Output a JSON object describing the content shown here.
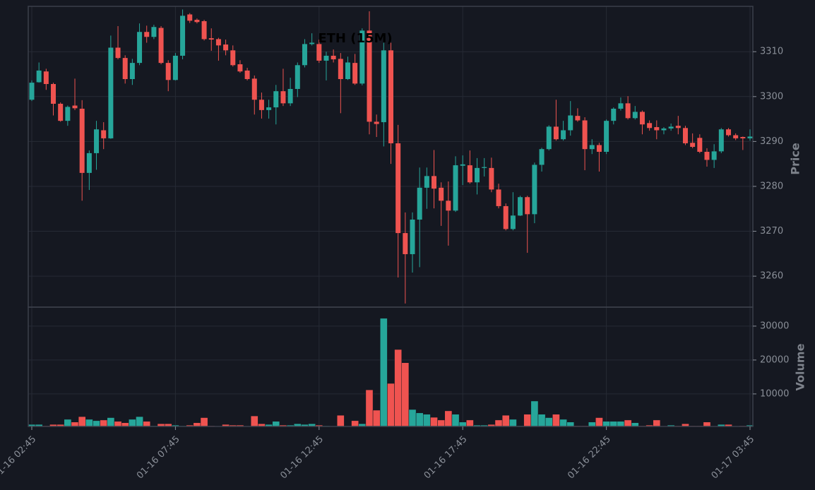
{
  "chart_data": {
    "type": "candlestick",
    "title": "ETH (15M)",
    "y_label": "Price",
    "volume_label": "Volume",
    "up_color": "#26a69a",
    "down_color": "#ef5350",
    "grid": true,
    "categories": [
      "01-16 02:45",
      null,
      null,
      null,
      null,
      null,
      null,
      null,
      null,
      null,
      null,
      null,
      null,
      null,
      null,
      null,
      null,
      null,
      null,
      null,
      "01-16 07:45",
      null,
      null,
      null,
      null,
      null,
      null,
      null,
      null,
      null,
      null,
      null,
      null,
      null,
      null,
      null,
      null,
      null,
      null,
      null,
      "01-16 12:45",
      null,
      null,
      null,
      null,
      null,
      null,
      null,
      null,
      null,
      null,
      null,
      null,
      null,
      null,
      null,
      null,
      null,
      null,
      null,
      "01-16 17:45",
      null,
      null,
      null,
      null,
      null,
      null,
      null,
      null,
      null,
      null,
      null,
      null,
      null,
      null,
      null,
      null,
      null,
      null,
      null,
      "01-16 22:45",
      null,
      null,
      null,
      null,
      null,
      null,
      null,
      null,
      null,
      null,
      null,
      null,
      null,
      null,
      null,
      null,
      null,
      null,
      null,
      "01-17 03:45"
    ],
    "open": [
      3299.3,
      3303.2,
      3305.6,
      3302.8,
      3298.4,
      3294.6,
      3298,
      3297.3,
      3283,
      3287.4,
      3292.5,
      3290.7,
      3310.9,
      3308.6,
      3303.9,
      3307.5,
      3314.4,
      3313.3,
      3315.3,
      3307.5,
      3303.7,
      3309.1,
      3318.3,
      3317.1,
      3316.8,
      3313,
      3312.8,
      3311.6,
      3310.3,
      3307.2,
      3305.8,
      3304,
      3299.3,
      3297,
      3297.6,
      3301.2,
      3298.5,
      3301.7,
      3307,
      3311.7,
      3311.7,
      3308,
      3309.1,
      3308.4,
      3303.9,
      3307.5,
      3302.9,
      3314.7,
      3294.4,
      3294.3,
      3310.3,
      3289.6,
      3269.6,
      3264.9,
      3272.6,
      3279.7,
      3282.3,
      3279.7,
      3276.8,
      3274.6,
      3284.6,
      3284.7,
      3280.9,
      3284.1,
      3284.1,
      3279.3,
      3275.6,
      3270.5,
      3273.5,
      3277.6,
      3273.8,
      3284.8,
      3288.3,
      3293.3,
      3290.5,
      3292.5,
      3295.7,
      3294.7,
      3288.3,
      3289.2,
      3287.7,
      3294.6,
      3297.3,
      3298.5,
      3295.2,
      3296.6,
      3294.1,
      3293.2,
      3292.5,
      3292.9,
      3293.5,
      3293,
      3289.7,
      3290.8,
      3287.7,
      3285.9,
      3287.8,
      3292.7,
      3291.4,
      3291,
      3290.7
    ],
    "high": [
      3303.6,
      3307.6,
      3306.2,
      3303.1,
      3298.7,
      3298,
      3304,
      3299.2,
      3288,
      3294.6,
      3294.3,
      3313.6,
      3315.7,
      3309.2,
      3308.4,
      3316.3,
      3315.8,
      3316,
      3315.7,
      3308.1,
      3309.7,
      3319.4,
      3318.6,
      3317.4,
      3317.1,
      3315.2,
      3313.1,
      3312.7,
      3311.4,
      3308.1,
      3306.4,
      3304.7,
      3300.9,
      3299.3,
      3302.6,
      3306.2,
      3304.2,
      3307.6,
      3312.8,
      3314.1,
      3312.7,
      3310,
      3310.5,
      3309.7,
      3308.9,
      3309.5,
      3315.2,
      3319,
      3296,
      3312,
      3312,
      3293.7,
      3274.2,
      3274.2,
      3284.2,
      3284.2,
      3288.1,
      3280.9,
      3281.1,
      3286.7,
      3286.9,
      3288,
      3286.3,
      3286.3,
      3286.4,
      3280.6,
      3276.2,
      3278.7,
      3277.9,
      3277.9,
      3285.3,
      3288.6,
      3293.6,
      3299.3,
      3294.6,
      3299,
      3297.4,
      3295.4,
      3290.5,
      3289.7,
      3294.9,
      3297.6,
      3299.8,
      3300.1,
      3297.9,
      3296.9,
      3294.7,
      3294.7,
      3293.2,
      3294,
      3295.7,
      3293.5,
      3291.8,
      3291.6,
      3288.5,
      3289.4,
      3293,
      3293,
      3291.8,
      3291.1,
      3292.7
    ],
    "low": [
      3299,
      3303.1,
      3301.5,
      3295.8,
      3294.4,
      3293.5,
      3297,
      3276.8,
      3279.2,
      3283.7,
      3288.3,
      3290.6,
      3308.3,
      3302.9,
      3302.6,
      3307,
      3312,
      3312.8,
      3307.2,
      3301.2,
      3303.6,
      3308.3,
      3316.4,
      3316.3,
      3312.5,
      3310.2,
      3308,
      3309.2,
      3306.7,
      3305.3,
      3303.6,
      3296,
      3295.1,
      3295.1,
      3293.8,
      3297.9,
      3297.9,
      3299.9,
      3306.5,
      3311.4,
      3307.5,
      3303.6,
      3307.6,
      3296.3,
      3303.7,
      3302.6,
      3302.5,
      3291.6,
      3291,
      3288.9,
      3285,
      3259.7,
      3253.9,
      3260.8,
      3262,
      3275,
      3275.1,
      3271.2,
      3266.8,
      3274.3,
      3280.3,
      3280.6,
      3278.2,
      3282.2,
      3278.7,
      3275.1,
      3270.2,
      3270.2,
      3273.4,
      3265.2,
      3271.8,
      3283.3,
      3288,
      3290.2,
      3290.2,
      3291.3,
      3294.4,
      3283.6,
      3287.2,
      3283.3,
      3287.2,
      3293.8,
      3296.9,
      3294.9,
      3294.9,
      3291.6,
      3292.4,
      3290.5,
      3291.6,
      3292.4,
      3291.6,
      3289.2,
      3288.5,
      3287.4,
      3284.4,
      3284.1,
      3287.4,
      3291.1,
      3290.3,
      3288.1,
      3290.2
    ],
    "close": [
      3303.1,
      3305.8,
      3302.8,
      3298.4,
      3294.6,
      3297.7,
      3297.4,
      3283,
      3287.4,
      3292.7,
      3290.7,
      3310.9,
      3308.6,
      3303.9,
      3307.5,
      3314.4,
      3313.3,
      3315.5,
      3307.5,
      3303.7,
      3309.1,
      3318,
      3316.9,
      3316.6,
      3312.8,
      3312.7,
      3311.4,
      3310.3,
      3307,
      3305.6,
      3303.9,
      3299.3,
      3297,
      3297.6,
      3301.2,
      3298.5,
      3301.7,
      3307,
      3311.7,
      3312,
      3308,
      3309.1,
      3308.3,
      3303.9,
      3307.6,
      3302.9,
      3314.7,
      3294.4,
      3293.9,
      3310.3,
      3289.6,
      3269.6,
      3264.9,
      3272.6,
      3279.7,
      3282.3,
      3279.5,
      3276.8,
      3274.6,
      3284.7,
      3284.9,
      3280.9,
      3284.1,
      3284.3,
      3279.3,
      3275.6,
      3270.5,
      3273.5,
      3277.6,
      3273.8,
      3284.8,
      3288.3,
      3293.3,
      3290.5,
      3292.5,
      3295.8,
      3294.7,
      3288.3,
      3289.2,
      3287.7,
      3294.6,
      3297.3,
      3298.5,
      3295.2,
      3296.6,
      3293.8,
      3293,
      3292.5,
      3292.9,
      3293.3,
      3293,
      3289.6,
      3288.8,
      3287.7,
      3285.9,
      3287.8,
      3292.7,
      3291.4,
      3290.7,
      3290.7,
      3291.1
    ],
    "volume": [
      1000,
      1000,
      600,
      1000,
      1000,
      2500,
      1700,
      3300,
      2500,
      2100,
      2300,
      3000,
      1900,
      1500,
      2500,
      3300,
      1900,
      600,
      1200,
      1200,
      800,
      600,
      800,
      1500,
      3000,
      600,
      500,
      1000,
      800,
      800,
      500,
      3500,
      1200,
      1000,
      1900,
      800,
      800,
      1200,
      1000,
      1200,
      800,
      600,
      500,
      3700,
      500,
      2100,
      1200,
      11200,
      5200,
      32300,
      13100,
      23100,
      19200,
      5400,
      4400,
      4000,
      3100,
      2300,
      5000,
      4000,
      1700,
      2300,
      800,
      800,
      1000,
      2300,
      3700,
      2500,
      600,
      4000,
      7900,
      4000,
      3000,
      4000,
      2500,
      1700,
      600,
      600,
      1700,
      3000,
      1900,
      1900,
      1900,
      2300,
      1500,
      600,
      800,
      2300,
      500,
      800,
      600,
      1200,
      600,
      600,
      1700,
      500,
      1000,
      1000,
      500,
      600,
      800
    ],
    "ylim": [
      3253.1,
      3320.1
    ],
    "yticks": [
      3260,
      3270,
      3280,
      3290,
      3300,
      3310
    ],
    "volume_ylim": [
      400,
      35600
    ],
    "volume_yticks": [
      10000,
      20000,
      30000
    ]
  }
}
